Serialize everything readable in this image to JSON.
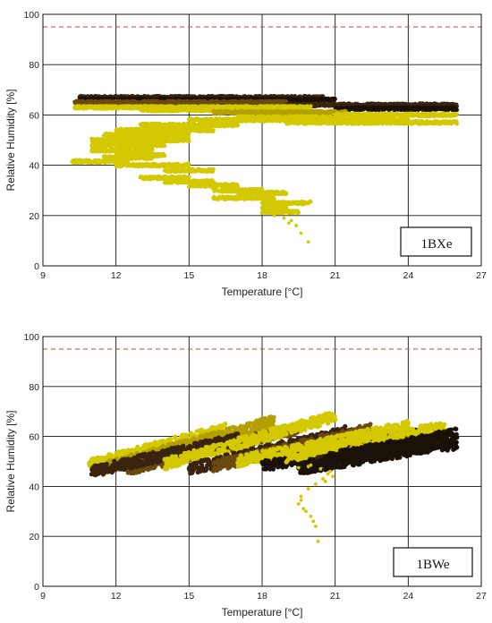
{
  "chart_data": [
    {
      "type": "scatter",
      "panel_label": "1BXe",
      "xlabel": "Temperature [°C]",
      "ylabel": "Relative Humidity [%]",
      "xlim": [
        9,
        27
      ],
      "ylim": [
        0,
        100
      ],
      "xticks": [
        9,
        12,
        15,
        18,
        21,
        24,
        27
      ],
      "yticks": [
        0,
        20,
        40,
        60,
        80,
        100
      ],
      "grid": true,
      "reference_line": {
        "y": 95,
        "style": "dashed",
        "color": "#d9534f"
      },
      "color_scale": [
        "#d4c800",
        "#b3a000",
        "#6b4a10",
        "#3a2410",
        "#1a1208"
      ],
      "bands": [
        {
          "x0": 10.5,
          "x1": 20.5,
          "y": 67,
          "tone": 3
        },
        {
          "x0": 10.5,
          "x1": 21.0,
          "y": 66,
          "tone": 4
        },
        {
          "x0": 10.3,
          "x1": 19.0,
          "y": 65,
          "tone": 2
        },
        {
          "x0": 19.0,
          "x1": 26.0,
          "y": 64,
          "tone": 3
        },
        {
          "x0": 21.0,
          "x1": 26.0,
          "y": 62.5,
          "tone": 4
        },
        {
          "x0": 10.3,
          "x1": 20.0,
          "y": 63,
          "tone": 0
        },
        {
          "x0": 13.0,
          "x1": 20.0,
          "y": 62,
          "tone": 0
        },
        {
          "x0": 16.0,
          "x1": 21.5,
          "y": 61,
          "tone": 1
        },
        {
          "x0": 21.0,
          "x1": 26.0,
          "y": 60,
          "tone": 0
        },
        {
          "x0": 17.0,
          "x1": 21.0,
          "y": 59,
          "tone": 0
        },
        {
          "x0": 15.0,
          "x1": 24.0,
          "y": 58,
          "tone": 0
        },
        {
          "x0": 19.0,
          "x1": 26.0,
          "y": 57,
          "tone": 0
        },
        {
          "x0": 13.0,
          "x1": 17.0,
          "y": 56,
          "tone": 0
        },
        {
          "x0": 12.0,
          "x1": 16.0,
          "y": 54,
          "tone": 0
        },
        {
          "x0": 11.5,
          "x1": 15.0,
          "y": 52,
          "tone": 0
        },
        {
          "x0": 11.0,
          "x1": 15.0,
          "y": 50,
          "tone": 0
        },
        {
          "x0": 11.0,
          "x1": 14.0,
          "y": 48,
          "tone": 0
        },
        {
          "x0": 11.0,
          "x1": 13.5,
          "y": 46,
          "tone": 0
        },
        {
          "x0": 12.0,
          "x1": 14.0,
          "y": 44,
          "tone": 0
        },
        {
          "x0": 11.5,
          "x1": 13.5,
          "y": 43,
          "tone": 0
        },
        {
          "x0": 10.2,
          "x1": 12.5,
          "y": 41.5,
          "tone": 0
        },
        {
          "x0": 12.0,
          "x1": 15.0,
          "y": 40,
          "tone": 0
        },
        {
          "x0": 14.0,
          "x1": 16.0,
          "y": 38,
          "tone": 0
        },
        {
          "x0": 13.0,
          "x1": 15.0,
          "y": 35,
          "tone": 0
        },
        {
          "x0": 14.0,
          "x1": 16.0,
          "y": 33.5,
          "tone": 0
        },
        {
          "x0": 15.0,
          "x1": 17.0,
          "y": 32,
          "tone": 0
        },
        {
          "x0": 16.0,
          "x1": 18.0,
          "y": 30,
          "tone": 0
        },
        {
          "x0": 17.0,
          "x1": 19.0,
          "y": 29,
          "tone": 0
        },
        {
          "x0": 16.0,
          "x1": 18.5,
          "y": 27,
          "tone": 0
        },
        {
          "x0": 18.0,
          "x1": 20.0,
          "y": 25,
          "tone": 0
        },
        {
          "x0": 18.0,
          "x1": 19.0,
          "y": 23,
          "tone": 0
        },
        {
          "x0": 18.0,
          "x1": 19.5,
          "y": 21.5,
          "tone": 0
        }
      ],
      "points": [
        [
          18.5,
          20
        ],
        [
          18.9,
          19
        ],
        [
          19.2,
          18
        ],
        [
          19.4,
          16
        ],
        [
          19.6,
          13
        ],
        [
          19.9,
          9.5
        ],
        [
          18.3,
          21
        ],
        [
          19.1,
          17
        ]
      ]
    },
    {
      "type": "scatter",
      "panel_label": "1BWe",
      "xlabel": "Temperature [°C]",
      "ylabel": "Relative Humidity [%]",
      "xlim": [
        9,
        27
      ],
      "ylim": [
        0,
        100
      ],
      "xticks": [
        9,
        12,
        15,
        18,
        21,
        24,
        27
      ],
      "yticks": [
        0,
        20,
        40,
        60,
        80,
        100
      ],
      "grid": true,
      "reference_line": {
        "y": 95,
        "style": "dashed",
        "color": "#d9534f"
      },
      "color_scale": [
        "#d4c800",
        "#b3a000",
        "#6b4a10",
        "#3a2410",
        "#1a1208"
      ],
      "bands": [
        {
          "x0": 10.9,
          "x1": 16.5,
          "y0": 48.5,
          "y1": 63,
          "tone": 0
        },
        {
          "x0": 11.5,
          "x1": 18.5,
          "y0": 47.5,
          "y1": 66,
          "tone": 1
        },
        {
          "x0": 12.5,
          "x1": 19.5,
          "y0": 47,
          "y1": 63,
          "tone": 2
        },
        {
          "x0": 11.0,
          "x1": 17.0,
          "y0": 46,
          "y1": 59,
          "tone": 3
        },
        {
          "x0": 14.0,
          "x1": 21.0,
          "y0": 49,
          "y1": 68,
          "tone": 0
        },
        {
          "x0": 15.0,
          "x1": 21.5,
          "y0": 47,
          "y1": 62,
          "tone": 3
        },
        {
          "x0": 16.0,
          "x1": 22.5,
          "y0": 48,
          "y1": 63,
          "tone": 2
        },
        {
          "x0": 17.0,
          "x1": 24.0,
          "y0": 50,
          "y1": 64,
          "tone": 0
        },
        {
          "x0": 18.0,
          "x1": 24.5,
          "y0": 48,
          "y1": 61,
          "tone": 4
        },
        {
          "x0": 19.0,
          "x1": 25.5,
          "y0": 52,
          "y1": 64,
          "tone": 0
        },
        {
          "x0": 20.0,
          "x1": 25.5,
          "y0": 49,
          "y1": 60,
          "tone": 3
        },
        {
          "x0": 20.5,
          "x1": 26.0,
          "y0": 51,
          "y1": 61,
          "tone": 4
        },
        {
          "x0": 21.0,
          "x1": 26.0,
          "y0": 52,
          "y1": 57,
          "tone": 4
        },
        {
          "x0": 19.5,
          "x1": 25.0,
          "y0": 47,
          "y1": 56,
          "tone": 4
        }
      ],
      "points": [
        [
          20.3,
          18
        ],
        [
          20.2,
          24
        ],
        [
          20.0,
          28
        ],
        [
          19.7,
          31
        ],
        [
          19.5,
          33
        ],
        [
          19.6,
          36
        ],
        [
          19.9,
          39
        ],
        [
          20.2,
          41
        ],
        [
          20.6,
          42
        ],
        [
          20.9,
          44
        ],
        [
          20.8,
          46
        ],
        [
          20.4,
          47
        ],
        [
          19.9,
          48
        ],
        [
          19.5,
          47.5
        ],
        [
          20.1,
          26
        ],
        [
          19.8,
          30
        ],
        [
          19.6,
          34.5
        ],
        [
          20.5,
          43
        ],
        [
          20.7,
          45
        ],
        [
          20.0,
          48.5
        ]
      ]
    }
  ]
}
